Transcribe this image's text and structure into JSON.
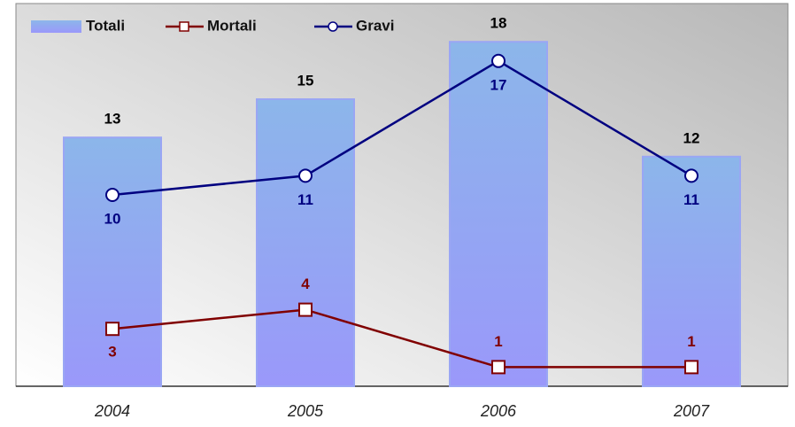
{
  "chart_data": {
    "type": "bar-line",
    "categories": [
      "2004",
      "2005",
      "2006",
      "2007"
    ],
    "series": [
      {
        "name": "Totali",
        "type": "bar",
        "color": "#9aa6f4",
        "values": [
          13,
          15,
          18,
          12
        ]
      },
      {
        "name": "Mortali",
        "type": "line",
        "marker": "square",
        "color": "#800000",
        "values": [
          3,
          4,
          1,
          1
        ]
      },
      {
        "name": "Gravi",
        "type": "line",
        "marker": "circle",
        "color": "#000080",
        "values": [
          10,
          11,
          17,
          11
        ]
      }
    ],
    "ylim": [
      0,
      20
    ],
    "legend": "top-left"
  }
}
